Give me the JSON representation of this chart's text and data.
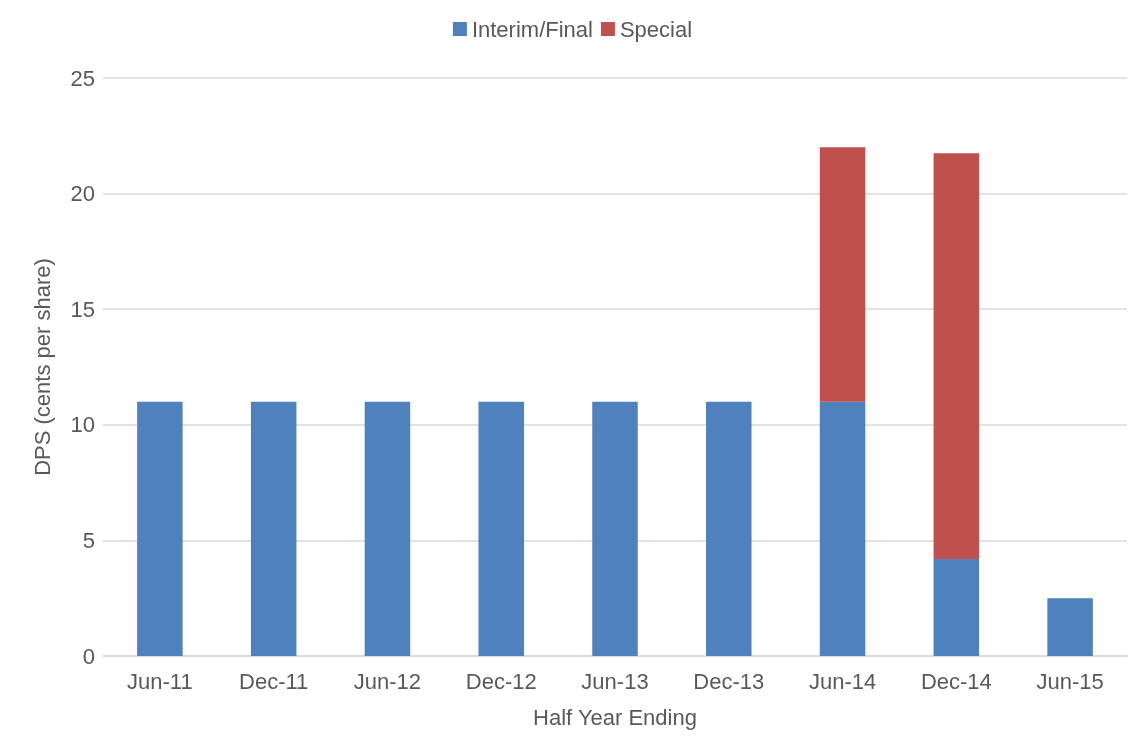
{
  "chart_data": {
    "type": "bar",
    "stacked": true,
    "xlabel": "Half Year Ending",
    "ylabel": "DPS (cents per share)",
    "categories": [
      "Jun-11",
      "Dec-11",
      "Jun-12",
      "Dec-12",
      "Jun-13",
      "Dec-13",
      "Jun-14",
      "Dec-14",
      "Jun-15"
    ],
    "series": [
      {
        "name": "Interim/Final",
        "color": "#4f81bd",
        "values": [
          11,
          11,
          11,
          11,
          11,
          11,
          11,
          4.2,
          2.5
        ]
      },
      {
        "name": "Special",
        "color": "#c0504d",
        "values": [
          null,
          null,
          null,
          null,
          null,
          null,
          11,
          17.55,
          null
        ]
      }
    ],
    "ylim": [
      0,
      25
    ],
    "yticks": [
      0,
      5,
      10,
      15,
      20,
      25
    ],
    "grid": "y",
    "legend": "top"
  }
}
